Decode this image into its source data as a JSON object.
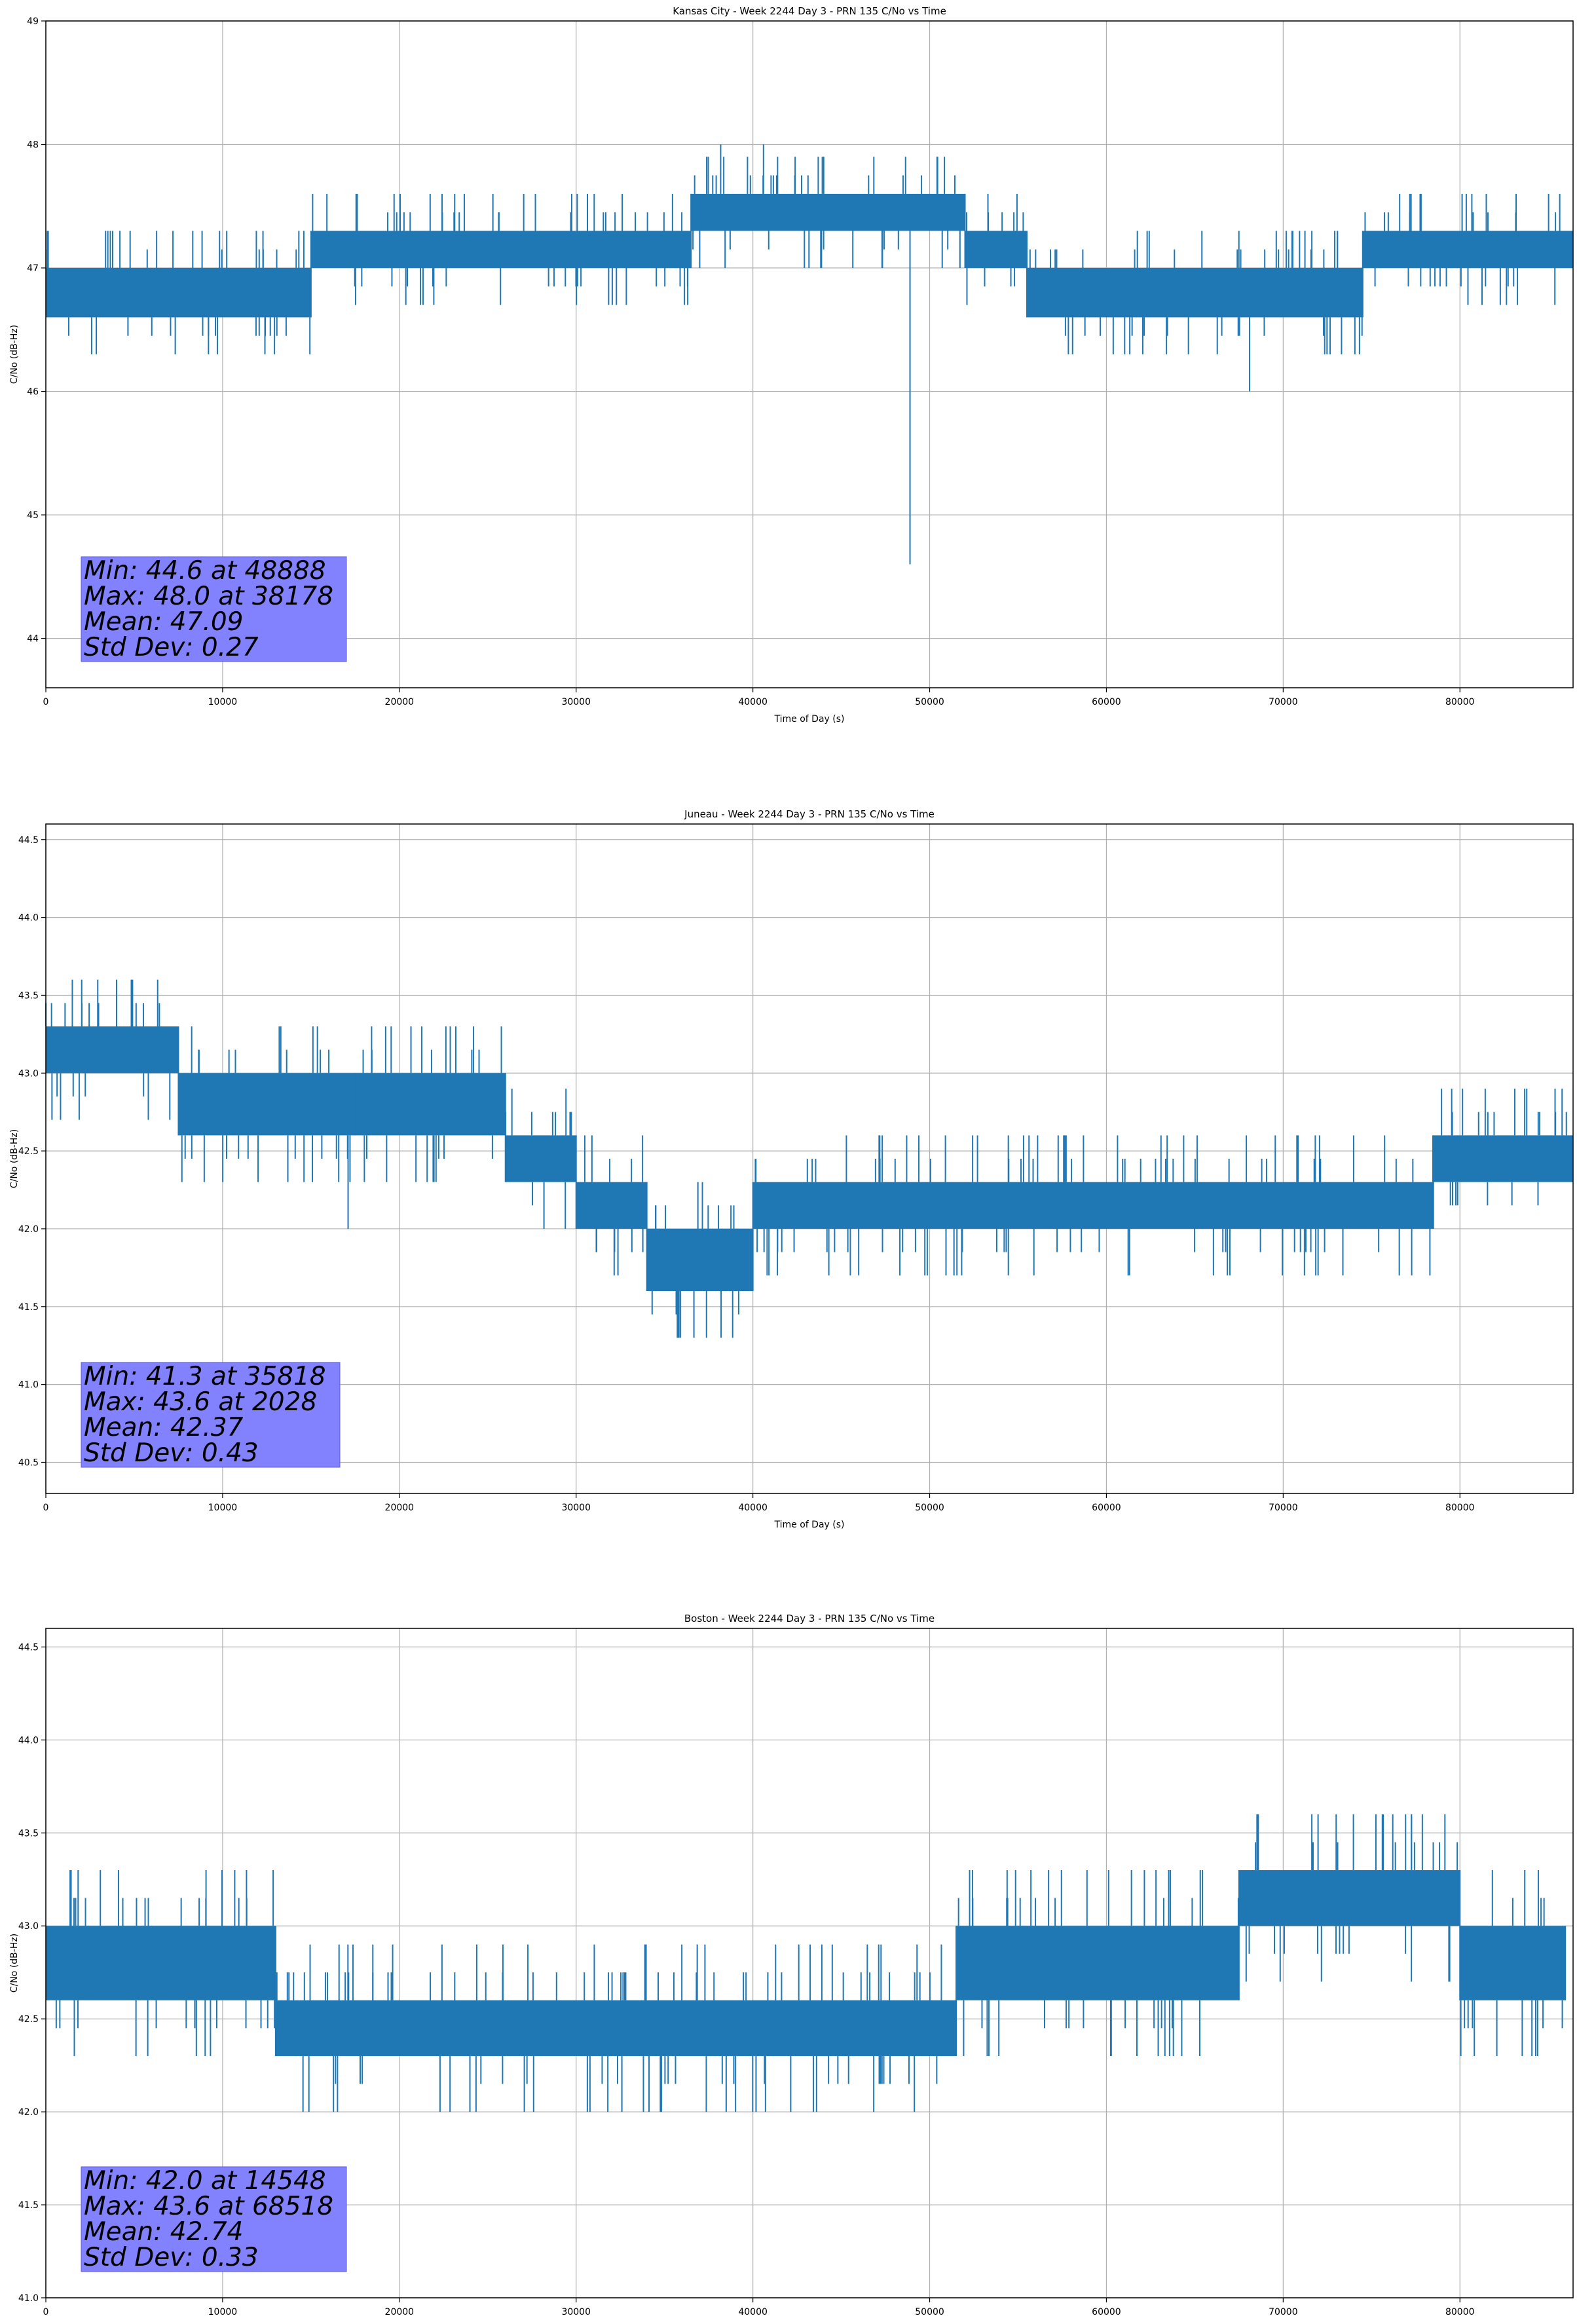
{
  "chart_data": [
    {
      "type": "line",
      "title": "Kansas City - Week 2244 Day 3 - PRN 135 C/No vs Time",
      "xlabel": "Time of Day (s)",
      "ylabel": "C/No (dB-Hz)",
      "xlim": [
        0,
        86400
      ],
      "ylim": [
        43.6,
        49.0
      ],
      "xticks": [
        0,
        10000,
        20000,
        30000,
        40000,
        50000,
        60000,
        70000,
        80000
      ],
      "xtick_labels": [
        "0",
        "10000",
        "20000",
        "30000",
        "40000",
        "50000",
        "60000",
        "70000",
        "80000"
      ],
      "yticks": [
        44,
        45,
        46,
        47,
        48,
        49
      ],
      "ytick_labels": [
        "44",
        "45",
        "46",
        "47",
        "48",
        "49"
      ],
      "grid": true,
      "line_color": "#1f77b4",
      "band_segments": [
        {
          "x0": 0,
          "x1": 15000,
          "lo": 46.6,
          "hi": 47.0
        },
        {
          "x0": 15000,
          "x1": 36500,
          "lo": 47.0,
          "hi": 47.3
        },
        {
          "x0": 36500,
          "x1": 52000,
          "lo": 47.3,
          "hi": 47.6
        },
        {
          "x0": 52000,
          "x1": 55500,
          "lo": 47.0,
          "hi": 47.3
        },
        {
          "x0": 55500,
          "x1": 74500,
          "lo": 46.6,
          "hi": 47.0
        },
        {
          "x0": 74500,
          "x1": 86400,
          "lo": 47.0,
          "hi": 47.3
        }
      ],
      "spikes": [
        {
          "x": 9200,
          "y": 46.3
        },
        {
          "x": 38178,
          "y": 48.0
        },
        {
          "x": 40600,
          "y": 48.0
        },
        {
          "x": 48888,
          "y": 44.6
        },
        {
          "x": 68100,
          "y": 46.0
        },
        {
          "x": 77800,
          "y": 47.6
        }
      ],
      "stats": [
        "Min: 44.6 at 48888",
        "Max: 48.0 at 38178",
        "Mean: 47.09",
        "Std Dev: 0.27"
      ],
      "stats_box_color": "#8080ff"
    },
    {
      "type": "line",
      "title": "Juneau - Week 2244 Day 3 - PRN 135 C/No vs Time",
      "xlabel": "Time of Day (s)",
      "ylabel": "C/No (dB-Hz)",
      "xlim": [
        0,
        86400
      ],
      "ylim": [
        40.3,
        44.6
      ],
      "xticks": [
        0,
        10000,
        20000,
        30000,
        40000,
        50000,
        60000,
        70000,
        80000
      ],
      "xtick_labels": [
        "0",
        "10000",
        "20000",
        "30000",
        "40000",
        "50000",
        "60000",
        "70000",
        "80000"
      ],
      "yticks": [
        40.5,
        41.0,
        41.5,
        42.0,
        42.5,
        43.0,
        43.5,
        44.0,
        44.5
      ],
      "ytick_labels": [
        "40.5",
        "41.0",
        "41.5",
        "42.0",
        "42.5",
        "43.0",
        "43.5",
        "44.0",
        "44.5"
      ],
      "grid": true,
      "line_color": "#1f77b4",
      "band_segments": [
        {
          "x0": 0,
          "x1": 7500,
          "lo": 43.0,
          "hi": 43.3
        },
        {
          "x0": 7500,
          "x1": 17500,
          "lo": 42.6,
          "hi": 43.0
        },
        {
          "x0": 17500,
          "x1": 26000,
          "lo": 42.6,
          "hi": 43.0
        },
        {
          "x0": 26000,
          "x1": 30000,
          "lo": 42.3,
          "hi": 42.6
        },
        {
          "x0": 30000,
          "x1": 34000,
          "lo": 42.0,
          "hi": 42.3
        },
        {
          "x0": 34000,
          "x1": 40000,
          "lo": 41.6,
          "hi": 42.0
        },
        {
          "x0": 40000,
          "x1": 78500,
          "lo": 42.0,
          "hi": 42.3
        },
        {
          "x0": 78500,
          "x1": 86400,
          "lo": 42.3,
          "hi": 42.6
        }
      ],
      "spikes": [
        {
          "x": 2028,
          "y": 43.6
        },
        {
          "x": 4000,
          "y": 43.6
        },
        {
          "x": 17100,
          "y": 42.0
        },
        {
          "x": 35818,
          "y": 41.3
        },
        {
          "x": 38200,
          "y": 41.3
        },
        {
          "x": 48700,
          "y": 42.6
        }
      ],
      "stats": [
        "Min: 41.3 at 35818",
        "Max: 43.6 at 2028",
        "Mean: 42.37",
        "Std Dev: 0.43"
      ],
      "stats_box_color": "#8080ff"
    },
    {
      "type": "line",
      "title": "Boston - Week 2244 Day 3 - PRN 135 C/No vs Time",
      "xlabel": "Time of Day (s)",
      "ylabel": "C/No (dB-Hz)",
      "xlim": [
        0,
        86400
      ],
      "ylim": [
        41.0,
        44.6
      ],
      "xticks": [
        0,
        10000,
        20000,
        30000,
        40000,
        50000,
        60000,
        70000,
        80000
      ],
      "xtick_labels": [
        "0",
        "10000",
        "20000",
        "30000",
        "40000",
        "50000",
        "60000",
        "70000",
        "80000"
      ],
      "yticks": [
        41.0,
        41.5,
        42.0,
        42.5,
        43.0,
        43.5,
        44.0,
        44.5
      ],
      "ytick_labels": [
        "41.0",
        "41.5",
        "42.0",
        "42.5",
        "43.0",
        "43.5",
        "44.0",
        "44.5"
      ],
      "grid": true,
      "line_color": "#1f77b4",
      "band_segments": [
        {
          "x0": 0,
          "x1": 13000,
          "lo": 42.6,
          "hi": 43.0
        },
        {
          "x0": 13000,
          "x1": 51500,
          "lo": 42.3,
          "hi": 42.6
        },
        {
          "x0": 51500,
          "x1": 67500,
          "lo": 42.6,
          "hi": 43.0
        },
        {
          "x0": 67500,
          "x1": 80000,
          "lo": 43.0,
          "hi": 43.3
        },
        {
          "x0": 80000,
          "x1": 86000,
          "lo": 42.6,
          "hi": 43.0
        }
      ],
      "spikes": [
        {
          "x": 14548,
          "y": 42.0
        },
        {
          "x": 16500,
          "y": 42.0
        },
        {
          "x": 22300,
          "y": 42.0
        },
        {
          "x": 43600,
          "y": 42.0
        },
        {
          "x": 68518,
          "y": 43.6
        },
        {
          "x": 76200,
          "y": 43.6
        }
      ],
      "stats": [
        "Min: 42.0 at 14548",
        "Max: 43.6 at 68518",
        "Mean: 42.74",
        "Std Dev: 0.33"
      ],
      "stats_box_color": "#8080ff"
    }
  ]
}
